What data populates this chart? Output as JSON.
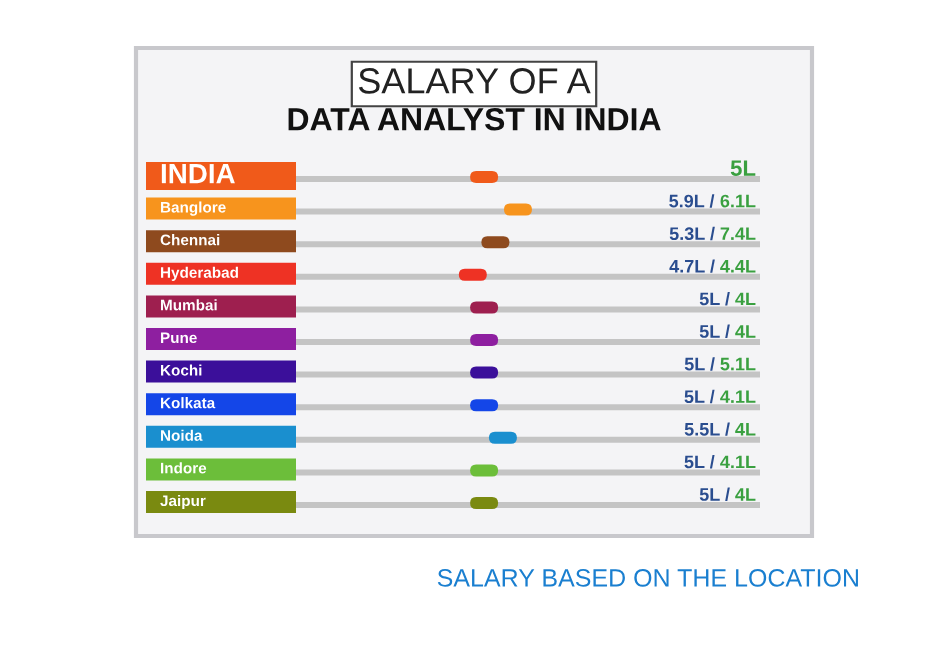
{
  "chart_data": {
    "type": "other",
    "title": "SALARY OF A",
    "subtitle": "DATA ANALYST IN INDIA",
    "categories": [
      "INDIA",
      "Banglore",
      "Chennai",
      "Hyderabad",
      "Mumbai",
      "Pune",
      "Kochi",
      "Kolkata",
      "Noida",
      "Indore",
      "Jaipur"
    ],
    "colors": [
      "#f05a1a",
      "#f7941d",
      "#8e4a1e",
      "#ee3224",
      "#9e1f4f",
      "#8e1fa0",
      "#3b0f9a",
      "#1446e8",
      "#1a8fcf",
      "#6cbe3a",
      "#7a8a10"
    ],
    "series": [
      {
        "color": "#2a4d8f",
        "values": [
          null,
          5.9,
          5.3,
          4.7,
          5,
          5,
          5,
          5,
          5.5,
          5,
          5
        ],
        "value_labels": [
          null,
          "5.9L /",
          "5.3L /",
          "4.7L /",
          "5L /",
          "5L /",
          "5L /",
          "5L /",
          "5.5L /",
          "5L /",
          "5L /"
        ]
      },
      {
        "color": "#3aa040",
        "values": [
          5,
          6.1,
          7.4,
          4.4,
          4,
          4,
          5.1,
          4.1,
          4,
          4.1,
          4
        ],
        "value_labels": [
          "5L",
          "6.1L",
          "7.4L",
          "4.4L",
          "4L",
          "4L",
          "5.1L",
          "4.1L",
          "4L",
          "4.1L",
          "4L"
        ]
      }
    ],
    "annotations": [
      "SALARY BASED ON THE LOCATION"
    ]
  }
}
